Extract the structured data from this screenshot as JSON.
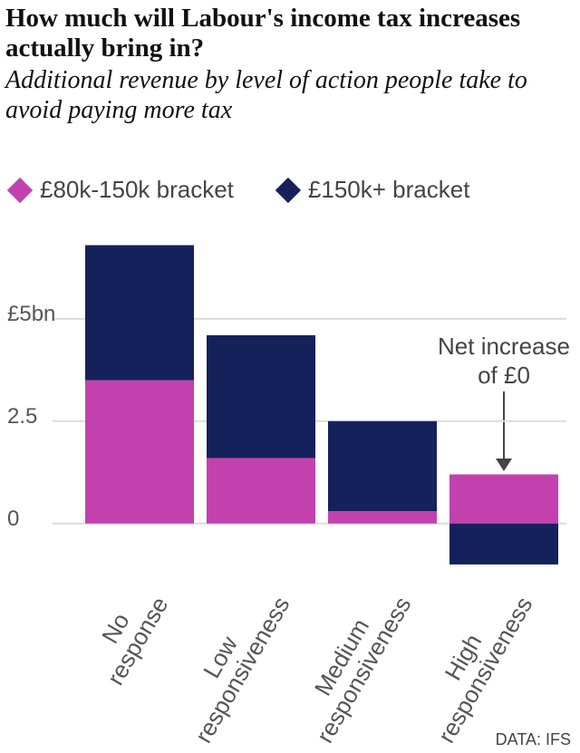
{
  "chart_data": {
    "type": "stacked-bar",
    "title": "How much will Labour's income tax increases actually bring in?",
    "subtitle": "Additional revenue by level of action people take to avoid paying more tax",
    "categories": [
      [
        "No",
        "response"
      ],
      [
        "Low",
        "responsiveness"
      ],
      [
        "Medium",
        "responsiveness"
      ],
      [
        "High",
        "responsiveness"
      ]
    ],
    "series": [
      {
        "name": "£80k-150k bracket",
        "color": "#c341ae",
        "values": [
          3.5,
          1.6,
          0.3,
          1.2
        ]
      },
      {
        "name": "£150k+ bracket",
        "color": "#15215a",
        "values": [
          3.3,
          3.0,
          2.2,
          -1.0
        ]
      }
    ],
    "ylim": [
      -1.4,
      7.1
    ],
    "yticks": [
      0,
      2.5,
      {
        "value": 5,
        "label": "£5bn"
      }
    ],
    "grid": true,
    "legend": "top",
    "annotation": {
      "lines": [
        "Net increase",
        "of £0"
      ],
      "category": 3
    },
    "source": "DATA: IFS"
  }
}
